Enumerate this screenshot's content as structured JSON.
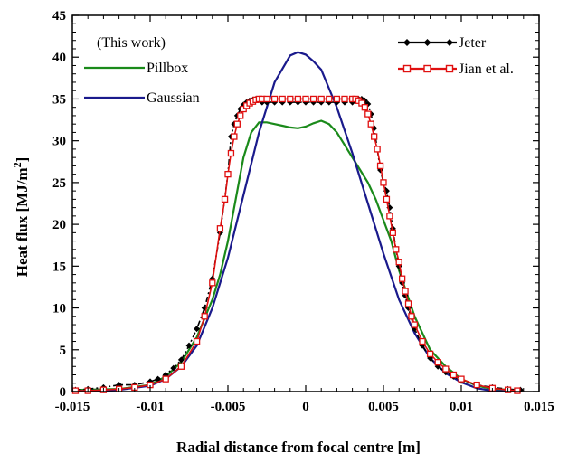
{
  "chart_data": {
    "type": "line",
    "xlabel": "Radial distance from focal centre  [m]",
    "ylabel": "Heat flux  [MJ/m",
    "ylabel_sup": "2",
    "ylabel_end": "]",
    "xlim": [
      -0.015,
      0.015
    ],
    "ylim": [
      0,
      45
    ],
    "x_ticks": [
      -0.015,
      -0.01,
      -0.005,
      0,
      0.005,
      0.01,
      0.015
    ],
    "x_tick_labels": [
      "-0.015",
      "-0.01",
      "-0.005",
      "0",
      "0.005",
      "0.01",
      "0.015"
    ],
    "y_ticks": [
      0,
      5,
      10,
      15,
      20,
      25,
      30,
      35,
      40,
      45
    ],
    "y_tick_labels": [
      "0",
      "5",
      "10",
      "15",
      "20",
      "25",
      "30",
      "35",
      "40",
      "45"
    ],
    "grid": false,
    "legend_header": "(This work)",
    "series": [
      {
        "name": "Pillbox",
        "color": "#1a8a1a",
        "marker": "none",
        "x": [
          -0.0148,
          -0.012,
          -0.01,
          -0.009,
          -0.008,
          -0.007,
          -0.006,
          -0.0055,
          -0.005,
          -0.0045,
          -0.004,
          -0.0035,
          -0.003,
          -0.0025,
          -0.002,
          -0.0015,
          -0.001,
          -0.0005,
          0,
          0.0005,
          0.001,
          0.0015,
          0.002,
          0.0025,
          0.003,
          0.0035,
          0.004,
          0.0045,
          0.005,
          0.0055,
          0.006,
          0.007,
          0.008,
          0.009,
          0.01,
          0.011,
          0.012,
          0.0135
        ],
        "y": [
          0.2,
          0.3,
          0.8,
          1.8,
          3.5,
          6.5,
          11,
          14,
          18,
          23,
          28,
          31,
          32.2,
          32.2,
          32.0,
          31.8,
          31.6,
          31.5,
          31.7,
          32.1,
          32.4,
          32.0,
          31.0,
          29.5,
          28.0,
          26.5,
          25.0,
          23.0,
          20.5,
          18.0,
          14.5,
          9.0,
          5.0,
          3.0,
          1.5,
          0.7,
          0.3,
          0.2
        ]
      },
      {
        "name": "Gaussian",
        "color": "#1a1a8c",
        "marker": "none",
        "x": [
          -0.0148,
          -0.012,
          -0.01,
          -0.009,
          -0.008,
          -0.007,
          -0.006,
          -0.005,
          -0.004,
          -0.003,
          -0.002,
          -0.001,
          -0.0005,
          0,
          0.0005,
          0.001,
          0.002,
          0.003,
          0.004,
          0.005,
          0.006,
          0.007,
          0.008,
          0.009,
          0.01,
          0.011,
          0.012,
          0.013
        ],
        "y": [
          0.05,
          0.2,
          0.7,
          1.5,
          3.0,
          5.5,
          10.0,
          16.0,
          23.5,
          31.0,
          37.0,
          40.2,
          40.6,
          40.3,
          39.5,
          38.5,
          34.0,
          28.5,
          22.5,
          16.5,
          11.0,
          7.0,
          4.0,
          2.2,
          1.1,
          0.4,
          0.1,
          0.0
        ]
      },
      {
        "name": "Jeter",
        "color": "#000000",
        "marker": "diamond",
        "x": [
          -0.0148,
          -0.014,
          -0.013,
          -0.012,
          -0.011,
          -0.01,
          -0.0095,
          -0.009,
          -0.0085,
          -0.008,
          -0.0075,
          -0.007,
          -0.0065,
          -0.006,
          -0.0055,
          -0.005,
          -0.0048,
          -0.0046,
          -0.0044,
          -0.0042,
          -0.004,
          -0.0038,
          -0.0036,
          -0.0034,
          -0.0032,
          -0.003,
          -0.0028,
          -0.0025,
          -0.002,
          -0.0015,
          -0.001,
          -0.0005,
          0,
          0.0005,
          0.001,
          0.0015,
          0.002,
          0.0025,
          0.003,
          0.0032,
          0.0034,
          0.0036,
          0.0038,
          0.004,
          0.0042,
          0.0044,
          0.0046,
          0.0048,
          0.005,
          0.0052,
          0.0054,
          0.0056,
          0.0058,
          0.006,
          0.0062,
          0.0064,
          0.0066,
          0.007,
          0.0075,
          0.008,
          0.0085,
          0.009,
          0.0095,
          0.01,
          0.011,
          0.012,
          0.013,
          0.0138
        ],
        "y": [
          0.2,
          0.3,
          0.5,
          0.8,
          0.8,
          1.2,
          1.5,
          2.0,
          2.8,
          3.8,
          5.5,
          7.5,
          10.0,
          13.5,
          19.0,
          26.0,
          30.5,
          32.0,
          33.0,
          33.8,
          34.3,
          34.6,
          34.8,
          34.9,
          35.0,
          35.0,
          34.6,
          34.6,
          34.6,
          34.6,
          34.6,
          34.6,
          34.6,
          34.6,
          34.6,
          34.6,
          34.6,
          34.6,
          34.6,
          35.0,
          35.0,
          35.0,
          34.8,
          34.4,
          33.2,
          31.5,
          29.0,
          26.5,
          25.0,
          24.0,
          22.0,
          19.5,
          17.0,
          15.0,
          13.0,
          11.5,
          10.0,
          7.5,
          5.5,
          4.0,
          3.0,
          2.3,
          1.8,
          1.3,
          0.8,
          0.5,
          0.3,
          0.2
        ]
      },
      {
        "name": "Jian et al.",
        "color": "#e01010",
        "marker": "square-open",
        "x": [
          -0.0148,
          -0.014,
          -0.013,
          -0.012,
          -0.011,
          -0.01,
          -0.009,
          -0.008,
          -0.007,
          -0.0065,
          -0.006,
          -0.0055,
          -0.0052,
          -0.005,
          -0.0048,
          -0.0046,
          -0.0044,
          -0.0042,
          -0.004,
          -0.0038,
          -0.0036,
          -0.0034,
          -0.0032,
          -0.003,
          -0.0028,
          -0.0025,
          -0.002,
          -0.0015,
          -0.001,
          -0.0005,
          0,
          0.0005,
          0.001,
          0.0015,
          0.002,
          0.0025,
          0.003,
          0.0032,
          0.0034,
          0.0036,
          0.0038,
          0.004,
          0.0042,
          0.0044,
          0.0046,
          0.0048,
          0.005,
          0.0052,
          0.0054,
          0.0056,
          0.0058,
          0.006,
          0.0062,
          0.0064,
          0.0066,
          0.0068,
          0.007,
          0.0075,
          0.008,
          0.0085,
          0.009,
          0.0095,
          0.01,
          0.011,
          0.012,
          0.013,
          0.0136
        ],
        "y": [
          0.1,
          0.1,
          0.2,
          0.3,
          0.5,
          0.8,
          1.5,
          3.0,
          6.0,
          9.0,
          13.0,
          19.5,
          23.0,
          26.0,
          28.5,
          30.5,
          32.0,
          33.0,
          33.8,
          34.2,
          34.5,
          34.7,
          34.9,
          35.0,
          35.0,
          35.0,
          35.0,
          35.0,
          35.0,
          35.0,
          35.0,
          35.0,
          35.0,
          35.0,
          35.0,
          35.0,
          35.0,
          35.0,
          34.8,
          34.5,
          34.0,
          33.2,
          32.0,
          30.5,
          29.0,
          27.0,
          25.0,
          23.0,
          21.0,
          19.0,
          17.0,
          15.5,
          13.5,
          12.0,
          10.5,
          9.0,
          8.0,
          6.0,
          4.5,
          3.5,
          2.7,
          2.0,
          1.5,
          0.8,
          0.4,
          0.2,
          0.1
        ]
      }
    ]
  }
}
